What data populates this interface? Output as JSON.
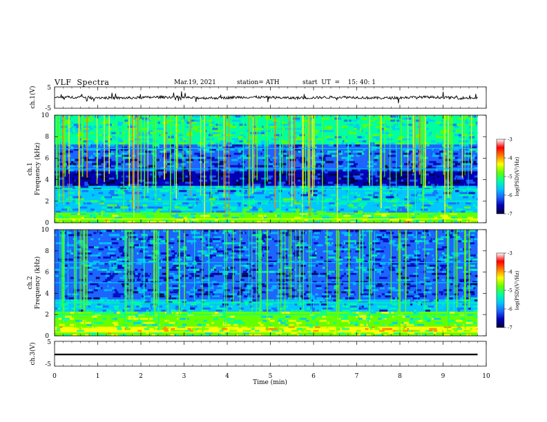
{
  "header": {
    "title": "VLF  Spectra",
    "date": "Mar.19, 2021",
    "station": "station= ATH",
    "start": "start  UT  =    15: 40: 1"
  },
  "colors": {
    "colormap": [
      "#00003c",
      "#0000b4",
      "#1e64ff",
      "#00c8ff",
      "#00ffa0",
      "#64ff00",
      "#ffff00",
      "#ff8000",
      "#ff0000",
      "#ffffff"
    ]
  },
  "chart_data": [
    {
      "type": "line",
      "panel": "ch1-waveform",
      "ylabel": "ch.1(V)",
      "ylim": [
        -5,
        5
      ],
      "yticks": [
        "5",
        "-5"
      ],
      "x": [
        0,
        1,
        2,
        3,
        4,
        5,
        6,
        7,
        8,
        9,
        9.8
      ],
      "y": [
        0,
        0.2,
        -0.1,
        0.1,
        0,
        -0.2,
        0.1,
        0,
        0.1,
        -0.1,
        0
      ]
    },
    {
      "type": "heatmap",
      "panel": "ch1-spectrogram",
      "ylabel": "ch.1\nFrequency (kHz)",
      "ylim": [
        0,
        10
      ],
      "yticks": [
        "0",
        "2",
        "4",
        "6",
        "8",
        "10"
      ],
      "colorbar": {
        "label": "log(PSD)(V²/Hz)",
        "range": [
          -7,
          -3
        ],
        "ticks": [
          "-3",
          "-4",
          "-5",
          "-6",
          "-7"
        ]
      }
    },
    {
      "type": "heatmap",
      "panel": "ch2-spectrogram",
      "ylabel": "ch.2\nFrequency (kHz)",
      "ylim": [
        0,
        10
      ],
      "yticks": [
        "0",
        "2",
        "4",
        "6",
        "8",
        "10"
      ],
      "colorbar": {
        "label": "log(PSD)(V²/Hz)",
        "range": [
          -7,
          -3
        ],
        "ticks": [
          "-3",
          "-4",
          "-5",
          "-6",
          "-7"
        ]
      }
    },
    {
      "type": "line",
      "panel": "ch3-waveform",
      "ylabel": "ch.3(V)",
      "ylim": [
        -5,
        5
      ],
      "yticks": [
        "5",
        "-5"
      ],
      "x": [
        0,
        9.8
      ],
      "y": [
        -0.3,
        -0.3
      ]
    }
  ],
  "xaxis": {
    "label": "Time (min)",
    "range": [
      0,
      10
    ],
    "ticks": [
      "0",
      "1",
      "2",
      "3",
      "4",
      "5",
      "6",
      "7",
      "8",
      "9",
      "10"
    ]
  }
}
